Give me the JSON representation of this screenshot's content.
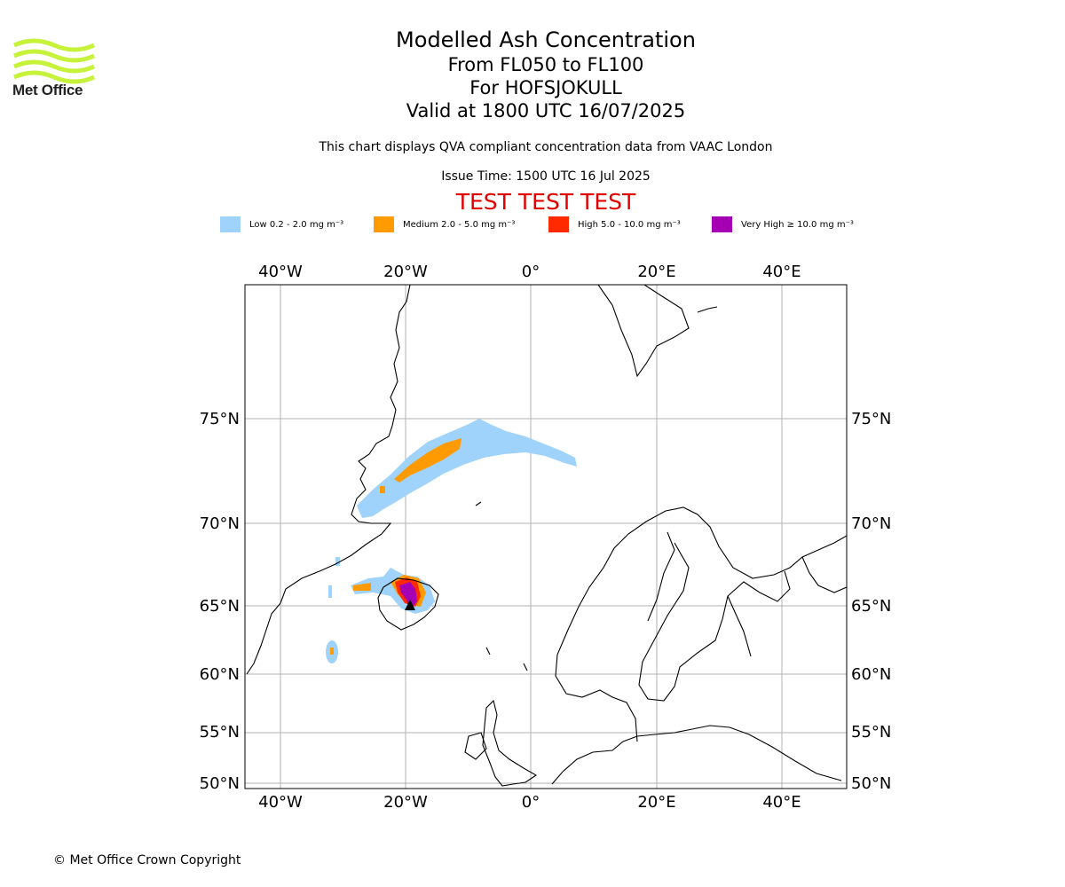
{
  "header": {
    "logo_text": "Met Office",
    "title": "Modelled Ash Concentration",
    "level_range": "From FL050 to FL100",
    "volcano": "For HOFSJOKULL",
    "valid_time": "Valid at 1800 UTC 16/07/2025",
    "subtitle": "This chart displays QVA compliant concentration data from VAAC London",
    "issue_time": "Issue Time: 1500 UTC 16 Jul 2025",
    "test_banner": "TEST TEST TEST"
  },
  "legend": [
    {
      "label": "Low 0.2 - 2.0 mg m⁻³",
      "color": "#9fd3fb"
    },
    {
      "label": "Medium 2.0 - 5.0 mg m⁻³",
      "color": "#ff9a00"
    },
    {
      "label": "High 5.0 - 10.0 mg m⁻³",
      "color": "#ff2a00"
    },
    {
      "label": "Very High  ≥  10.0 mg m⁻³",
      "color": "#a600b4"
    }
  ],
  "map": {
    "lon_ticks": [
      "40°W",
      "20°W",
      "0°",
      "20°E",
      "40°E"
    ],
    "lat_ticks": [
      "75°N",
      "70°N",
      "65°N",
      "60°N",
      "55°N",
      "50°N"
    ],
    "gridline_color": "#b0b0b0",
    "coastline_color": "#000000"
  },
  "footer": {
    "copyright": "© Met Office Crown Copyright"
  }
}
